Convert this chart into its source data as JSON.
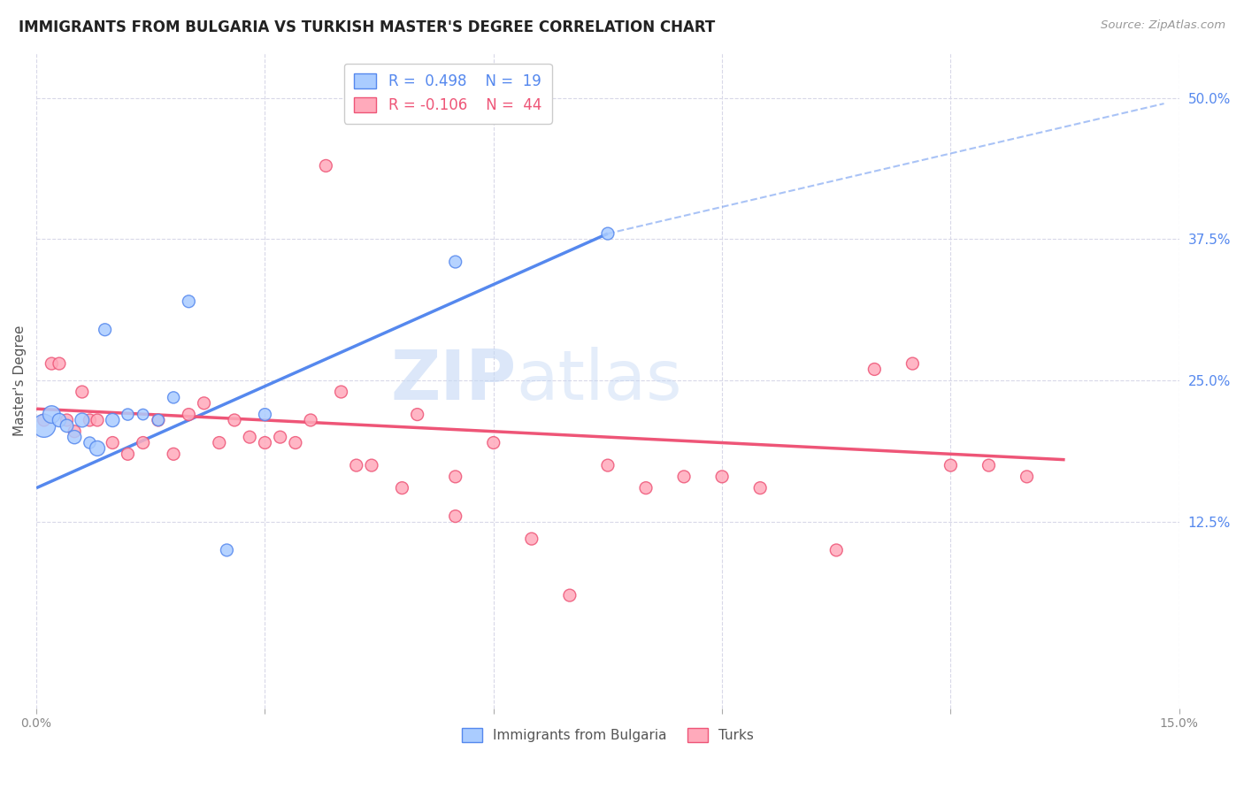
{
  "title": "IMMIGRANTS FROM BULGARIA VS TURKISH MASTER'S DEGREE CORRELATION CHART",
  "source": "Source: ZipAtlas.com",
  "ylabel": "Master's Degree",
  "right_ytick_labels": [
    "50.0%",
    "37.5%",
    "25.0%",
    "12.5%"
  ],
  "right_ytick_values": [
    0.5,
    0.375,
    0.25,
    0.125
  ],
  "xtick_values": [
    0.0,
    0.03,
    0.06,
    0.09,
    0.12,
    0.15
  ],
  "xlim": [
    0.0,
    0.15
  ],
  "ylim": [
    -0.04,
    0.54
  ],
  "bg_color": "#ffffff",
  "grid_color": "#d8d8e8",
  "blue_color": "#5588ee",
  "pink_color": "#ee5577",
  "blue_fill": "#aaccff",
  "pink_fill": "#ffaabb",
  "legend_R_blue": "R =  0.498",
  "legend_N_blue": "N =  19",
  "legend_R_pink": "R = -0.106",
  "legend_N_pink": "N =  44",
  "watermark_zip": "ZIP",
  "watermark_atlas": "atlas",
  "blue_scatter_x": [
    0.001,
    0.002,
    0.003,
    0.004,
    0.005,
    0.006,
    0.007,
    0.008,
    0.009,
    0.01,
    0.012,
    0.014,
    0.016,
    0.018,
    0.02,
    0.025,
    0.03,
    0.055,
    0.075
  ],
  "blue_scatter_y": [
    0.21,
    0.22,
    0.215,
    0.21,
    0.2,
    0.215,
    0.195,
    0.19,
    0.295,
    0.215,
    0.22,
    0.22,
    0.215,
    0.235,
    0.32,
    0.1,
    0.22,
    0.355,
    0.38
  ],
  "blue_scatter_size": [
    350,
    200,
    120,
    110,
    120,
    130,
    90,
    150,
    100,
    120,
    90,
    80,
    90,
    90,
    100,
    100,
    100,
    100,
    100
  ],
  "pink_scatter_x": [
    0.001,
    0.002,
    0.003,
    0.004,
    0.005,
    0.006,
    0.007,
    0.008,
    0.01,
    0.012,
    0.014,
    0.016,
    0.018,
    0.02,
    0.022,
    0.024,
    0.026,
    0.028,
    0.03,
    0.032,
    0.034,
    0.036,
    0.038,
    0.04,
    0.042,
    0.044,
    0.048,
    0.05,
    0.055,
    0.06,
    0.065,
    0.09,
    0.095,
    0.105,
    0.11,
    0.115,
    0.12,
    0.125,
    0.13,
    0.055,
    0.07,
    0.075,
    0.08,
    0.085
  ],
  "pink_scatter_y": [
    0.215,
    0.265,
    0.265,
    0.215,
    0.205,
    0.24,
    0.215,
    0.215,
    0.195,
    0.185,
    0.195,
    0.215,
    0.185,
    0.22,
    0.23,
    0.195,
    0.215,
    0.2,
    0.195,
    0.2,
    0.195,
    0.215,
    0.44,
    0.24,
    0.175,
    0.175,
    0.155,
    0.22,
    0.13,
    0.195,
    0.11,
    0.165,
    0.155,
    0.1,
    0.26,
    0.265,
    0.175,
    0.175,
    0.165,
    0.165,
    0.06,
    0.175,
    0.155,
    0.165
  ],
  "pink_scatter_size": [
    100,
    100,
    100,
    100,
    100,
    100,
    100,
    100,
    100,
    100,
    100,
    100,
    100,
    100,
    100,
    100,
    100,
    100,
    100,
    100,
    100,
    100,
    100,
    100,
    100,
    100,
    100,
    100,
    100,
    100,
    100,
    100,
    100,
    100,
    100,
    100,
    100,
    100,
    100,
    100,
    100,
    100,
    100,
    100
  ],
  "blue_trend_x": [
    0.0,
    0.075
  ],
  "blue_trend_y": [
    0.155,
    0.38
  ],
  "pink_trend_x": [
    0.0,
    0.135
  ],
  "pink_trend_y": [
    0.225,
    0.18
  ],
  "dash_trend_x": [
    0.075,
    0.148
  ],
  "dash_trend_y": [
    0.38,
    0.495
  ]
}
